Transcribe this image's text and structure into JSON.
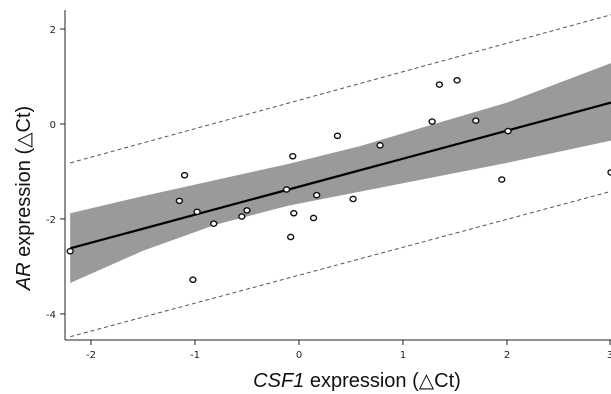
{
  "chart_data": {
    "type": "scatter",
    "title": "",
    "xlabel": {
      "gene": "CSF1",
      "rest": " expression (△Ct)"
    },
    "ylabel": {
      "gene": "AR",
      "rest": " expression (△Ct)"
    },
    "xlim": [
      -2.25,
      3.0
    ],
    "ylim": [
      -4.55,
      2.4
    ],
    "xticks": [
      -2,
      -1,
      0,
      1,
      2,
      3
    ],
    "yticks": [
      2,
      0,
      -2,
      -4
    ],
    "xtick_labels": [
      "-2",
      "-1",
      "0",
      "1",
      "2",
      "3"
    ],
    "ytick_labels": [
      "2",
      "0",
      "-2",
      "-4"
    ],
    "grid": false,
    "points": [
      {
        "x": -2.2,
        "y": -2.68
      },
      {
        "x": -1.15,
        "y": -1.62
      },
      {
        "x": -1.1,
        "y": -1.08
      },
      {
        "x": -1.02,
        "y": -3.28
      },
      {
        "x": -0.98,
        "y": -1.85
      },
      {
        "x": -0.82,
        "y": -2.1
      },
      {
        "x": -0.55,
        "y": -1.95
      },
      {
        "x": -0.5,
        "y": -1.82
      },
      {
        "x": -0.12,
        "y": -1.38
      },
      {
        "x": -0.08,
        "y": -2.38
      },
      {
        "x": -0.06,
        "y": -0.68
      },
      {
        "x": -0.05,
        "y": -1.88
      },
      {
        "x": 0.14,
        "y": -1.98
      },
      {
        "x": 0.17,
        "y": -1.5
      },
      {
        "x": 0.37,
        "y": -0.25
      },
      {
        "x": 0.52,
        "y": -1.58
      },
      {
        "x": 0.78,
        "y": -0.45
      },
      {
        "x": 1.28,
        "y": 0.05
      },
      {
        "x": 1.35,
        "y": 0.83
      },
      {
        "x": 1.52,
        "y": 0.92
      },
      {
        "x": 1.7,
        "y": 0.07
      },
      {
        "x": 1.95,
        "y": -1.17
      },
      {
        "x": 2.01,
        "y": -0.15
      },
      {
        "x": 3.0,
        "y": -1.02
      }
    ],
    "fit_line": {
      "x": [
        -2.2,
        3.0
      ],
      "y": [
        -2.62,
        0.45
      ]
    },
    "confidence_band": {
      "x": [
        -2.2,
        -1.5,
        -0.8,
        -0.1,
        0.6,
        1.3,
        2.0,
        3.0
      ],
      "lower": [
        -3.35,
        -2.67,
        -2.12,
        -1.72,
        -1.42,
        -1.12,
        -0.82,
        -0.35
      ],
      "upper": [
        -1.88,
        -1.52,
        -1.18,
        -0.84,
        -0.46,
        0.0,
        0.45,
        1.28
      ]
    },
    "prediction_interval": {
      "x": [
        -2.2,
        3.0
      ],
      "lower": [
        -4.48,
        -1.42
      ],
      "upper": [
        -0.82,
        2.3
      ]
    },
    "colors": {
      "points": "#111111",
      "fit_line": "#000000",
      "band": "#9a9a9a",
      "prediction": "#555555",
      "axis": "#222222"
    }
  }
}
